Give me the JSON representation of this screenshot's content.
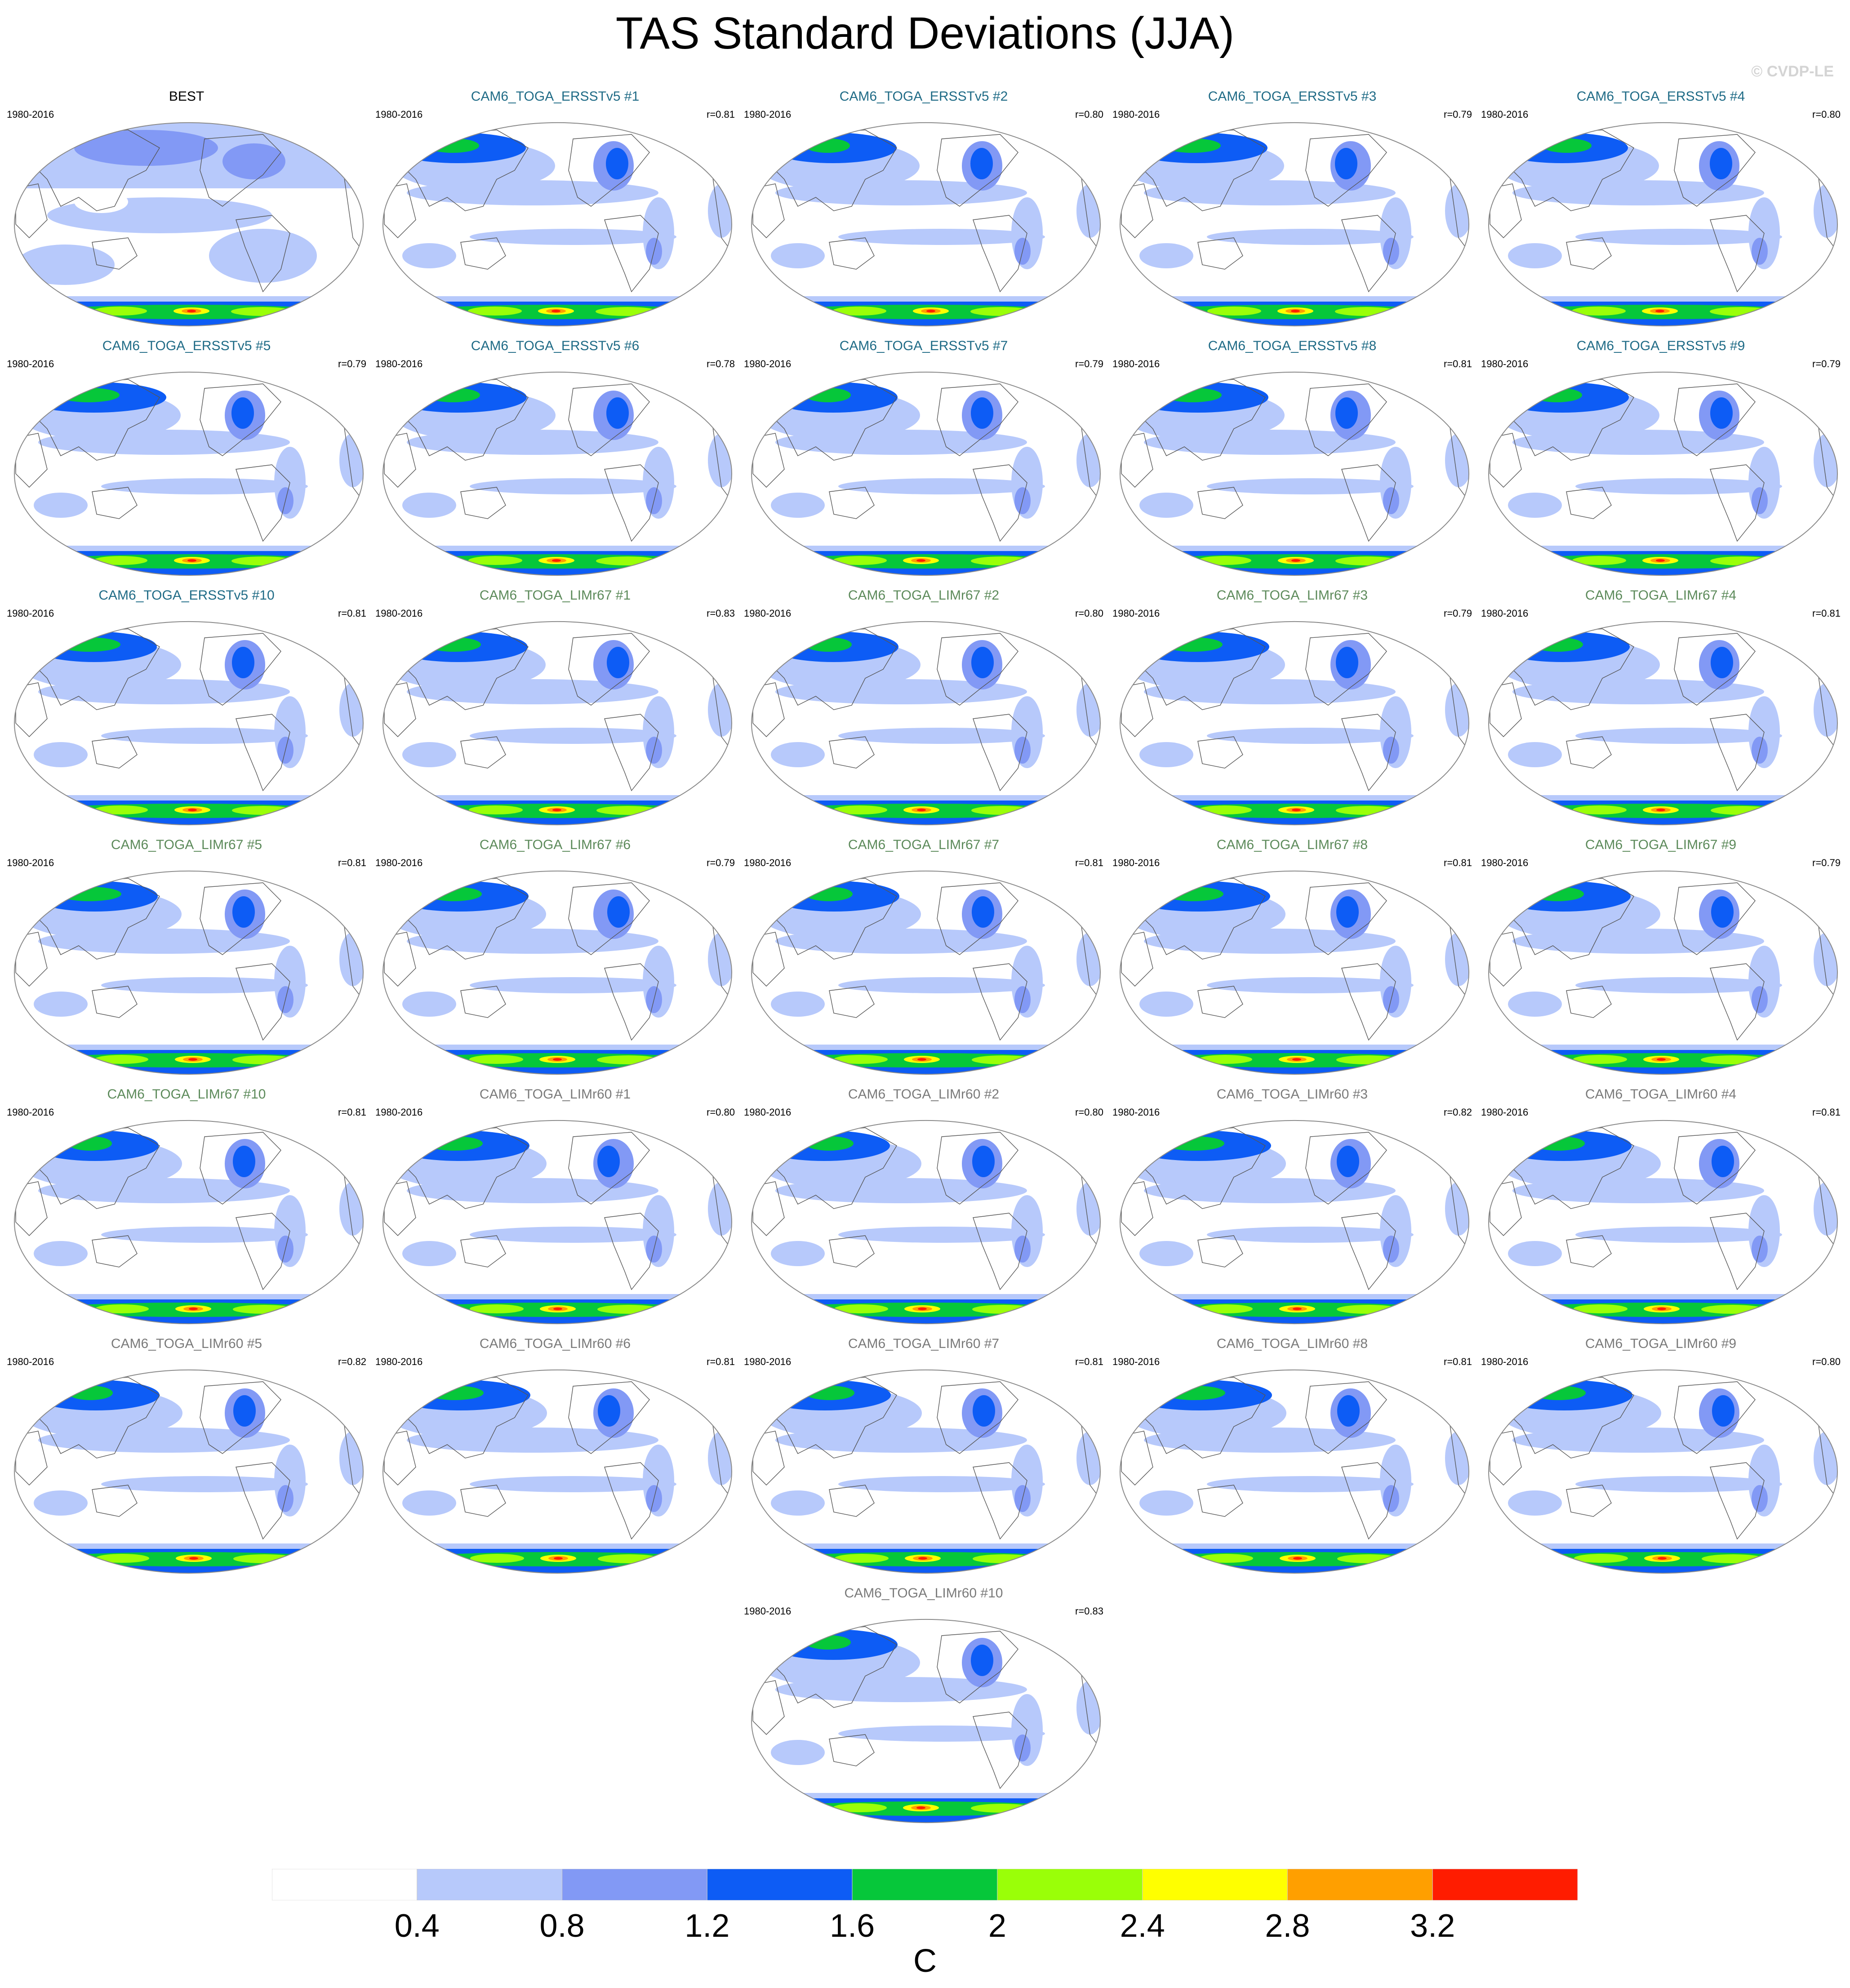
{
  "title": "TAS Standard Deviations (JJA)",
  "watermark": "© CVDP-LE",
  "colors": {
    "background": "#ffffff",
    "land_outline": "#555555",
    "map_border": "#8a8a8a",
    "title_obs": "#000000",
    "title_ersst": "#1f6b86",
    "title_limr67": "#5c8a5a",
    "title_limr60": "#7a7a7a"
  },
  "colorbar": {
    "unit": "C",
    "levels": [
      "0.4",
      "0.8",
      "1.2",
      "1.6",
      "2",
      "2.4",
      "2.8",
      "3.2"
    ],
    "colors": [
      "#ffffff",
      "#b7c9fb",
      "#8299f5",
      "#0d5cf5",
      "#06c73a",
      "#9aff08",
      "#ffff00",
      "#ff9f00",
      "#ff1c00"
    ]
  },
  "panels": [
    {
      "name": "BEST",
      "period": "1980-2016",
      "r": "",
      "group": "obs"
    },
    {
      "name": "CAM6_TOGA_ERSSTv5 #1",
      "period": "1980-2016",
      "r": "r=0.81",
      "group": "ersst"
    },
    {
      "name": "CAM6_TOGA_ERSSTv5 #2",
      "period": "1980-2016",
      "r": "r=0.80",
      "group": "ersst"
    },
    {
      "name": "CAM6_TOGA_ERSSTv5 #3",
      "period": "1980-2016",
      "r": "r=0.79",
      "group": "ersst"
    },
    {
      "name": "CAM6_TOGA_ERSSTv5 #4",
      "period": "1980-2016",
      "r": "r=0.80",
      "group": "ersst"
    },
    {
      "name": "CAM6_TOGA_ERSSTv5 #5",
      "period": "1980-2016",
      "r": "r=0.79",
      "group": "ersst"
    },
    {
      "name": "CAM6_TOGA_ERSSTv5 #6",
      "period": "1980-2016",
      "r": "r=0.78",
      "group": "ersst"
    },
    {
      "name": "CAM6_TOGA_ERSSTv5 #7",
      "period": "1980-2016",
      "r": "r=0.79",
      "group": "ersst"
    },
    {
      "name": "CAM6_TOGA_ERSSTv5 #8",
      "period": "1980-2016",
      "r": "r=0.81",
      "group": "ersst"
    },
    {
      "name": "CAM6_TOGA_ERSSTv5 #9",
      "period": "1980-2016",
      "r": "r=0.79",
      "group": "ersst"
    },
    {
      "name": "CAM6_TOGA_ERSSTv5 #10",
      "period": "1980-2016",
      "r": "r=0.81",
      "group": "ersst"
    },
    {
      "name": "CAM6_TOGA_LIMr67 #1",
      "period": "1980-2016",
      "r": "r=0.83",
      "group": "limr67"
    },
    {
      "name": "CAM6_TOGA_LIMr67 #2",
      "period": "1980-2016",
      "r": "r=0.80",
      "group": "limr67"
    },
    {
      "name": "CAM6_TOGA_LIMr67 #3",
      "period": "1980-2016",
      "r": "r=0.79",
      "group": "limr67"
    },
    {
      "name": "CAM6_TOGA_LIMr67 #4",
      "period": "1980-2016",
      "r": "r=0.81",
      "group": "limr67"
    },
    {
      "name": "CAM6_TOGA_LIMr67 #5",
      "period": "1980-2016",
      "r": "r=0.81",
      "group": "limr67"
    },
    {
      "name": "CAM6_TOGA_LIMr67 #6",
      "period": "1980-2016",
      "r": "r=0.79",
      "group": "limr67"
    },
    {
      "name": "CAM6_TOGA_LIMr67 #7",
      "period": "1980-2016",
      "r": "r=0.81",
      "group": "limr67"
    },
    {
      "name": "CAM6_TOGA_LIMr67 #8",
      "period": "1980-2016",
      "r": "r=0.81",
      "group": "limr67"
    },
    {
      "name": "CAM6_TOGA_LIMr67 #9",
      "period": "1980-2016",
      "r": "r=0.79",
      "group": "limr67"
    },
    {
      "name": "CAM6_TOGA_LIMr67 #10",
      "period": "1980-2016",
      "r": "r=0.81",
      "group": "limr67"
    },
    {
      "name": "CAM6_TOGA_LIMr60 #1",
      "period": "1980-2016",
      "r": "r=0.80",
      "group": "limr60"
    },
    {
      "name": "CAM6_TOGA_LIMr60 #2",
      "period": "1980-2016",
      "r": "r=0.80",
      "group": "limr60"
    },
    {
      "name": "CAM6_TOGA_LIMr60 #3",
      "period": "1980-2016",
      "r": "r=0.82",
      "group": "limr60"
    },
    {
      "name": "CAM6_TOGA_LIMr60 #4",
      "period": "1980-2016",
      "r": "r=0.81",
      "group": "limr60"
    },
    {
      "name": "CAM6_TOGA_LIMr60 #5",
      "period": "1980-2016",
      "r": "r=0.82",
      "group": "limr60"
    },
    {
      "name": "CAM6_TOGA_LIMr60 #6",
      "period": "1980-2016",
      "r": "r=0.81",
      "group": "limr60"
    },
    {
      "name": "CAM6_TOGA_LIMr60 #7",
      "period": "1980-2016",
      "r": "r=0.81",
      "group": "limr60"
    },
    {
      "name": "CAM6_TOGA_LIMr60 #8",
      "period": "1980-2016",
      "r": "r=0.81",
      "group": "limr60"
    },
    {
      "name": "CAM6_TOGA_LIMr60 #9",
      "period": "1980-2016",
      "r": "r=0.80",
      "group": "limr60"
    },
    {
      "name": "CAM6_TOGA_LIMr60 #10",
      "period": "1980-2016",
      "r": "r=0.83",
      "group": "limr60"
    }
  ]
}
